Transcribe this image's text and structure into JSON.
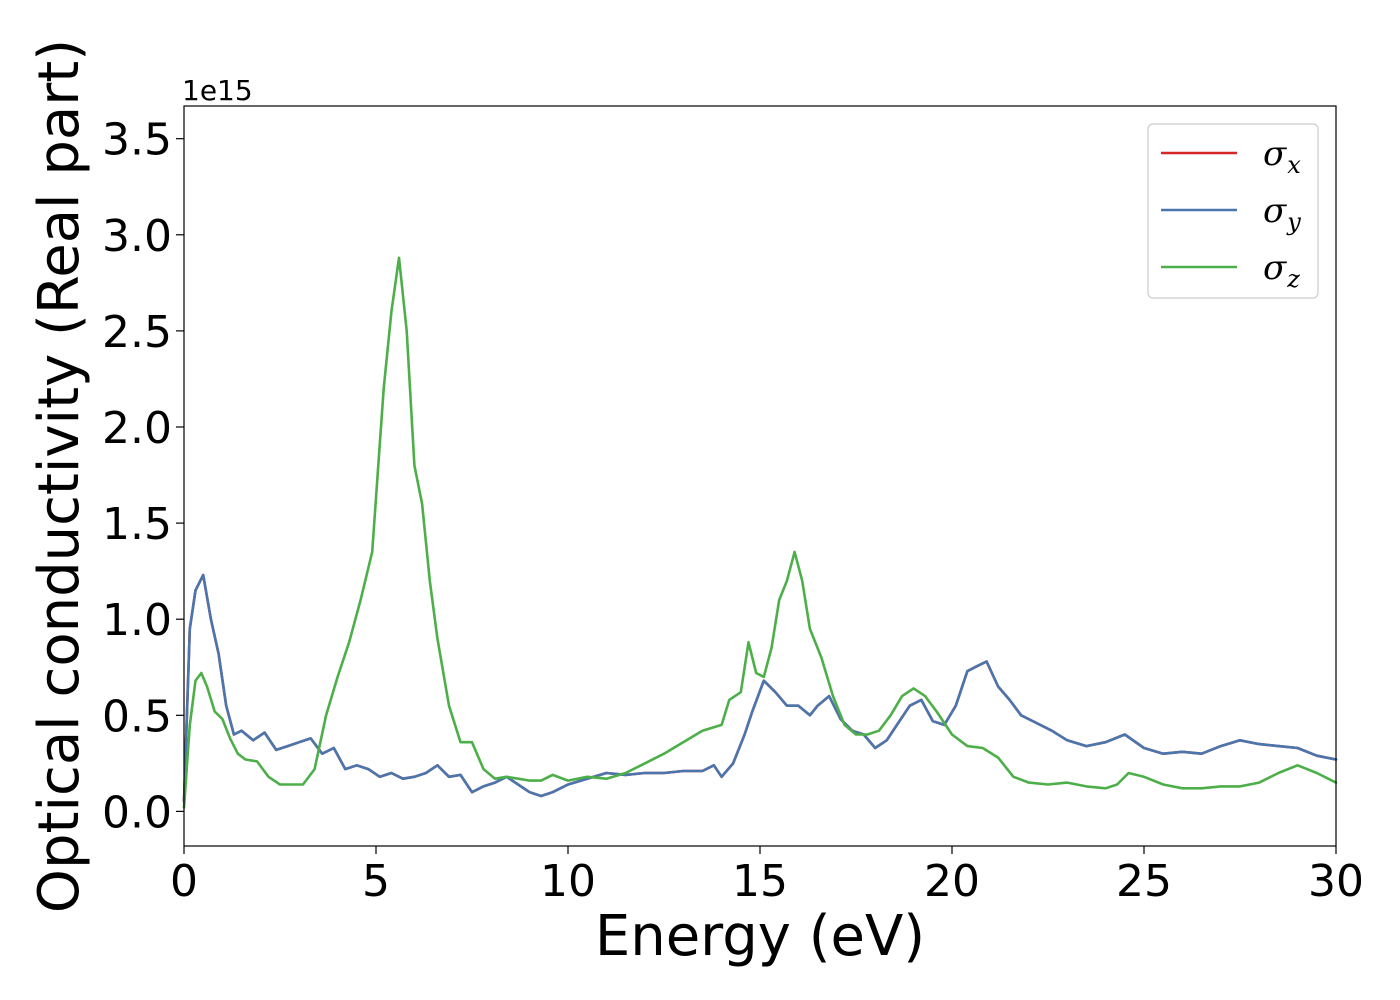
{
  "chart_data": {
    "type": "line",
    "xlabel": "Energy (eV)",
    "ylabel": "Optical conductivity (Real part)",
    "y_offset_label": "1e15",
    "xlim": [
      0,
      30
    ],
    "ylim": [
      -0.18,
      3.67
    ],
    "x_ticks": [
      0,
      5,
      10,
      15,
      20,
      25,
      30
    ],
    "x_tick_labels": [
      "0",
      "5",
      "10",
      "15",
      "20",
      "25",
      "30"
    ],
    "y_ticks": [
      0.0,
      0.5,
      1.0,
      1.5,
      2.0,
      2.5,
      3.0,
      3.5
    ],
    "y_tick_labels": [
      "0.0",
      "0.5",
      "1.0",
      "1.5",
      "2.0",
      "2.5",
      "3.0",
      "3.5"
    ],
    "grid": false,
    "legend_position": "top-right",
    "series": [
      {
        "name": "σ",
        "subscript": "x",
        "color": "#d62728",
        "x": [
          0,
          0.15,
          0.3,
          0.5,
          0.7,
          0.9,
          1.1,
          1.3,
          1.5,
          1.8,
          2.1,
          2.4,
          2.7,
          3.0,
          3.3,
          3.6,
          3.9,
          4.2,
          4.5,
          4.8,
          5.1,
          5.4,
          5.7,
          6.0,
          6.3,
          6.6,
          6.9,
          7.2,
          7.5,
          7.8,
          8.1,
          8.4,
          8.7,
          9.0,
          9.3,
          9.6,
          10.0,
          10.5,
          11.0,
          11.5,
          12.0,
          12.5,
          13.0,
          13.5,
          13.8,
          14.0,
          14.3,
          14.6,
          14.8,
          15.1,
          15.4,
          15.7,
          16.0,
          16.3,
          16.5,
          16.8,
          17.1,
          17.4,
          17.7,
          18.0,
          18.3,
          18.6,
          18.9,
          19.2,
          19.5,
          19.8,
          20.1,
          20.4,
          20.6,
          20.9,
          21.2,
          21.5,
          21.8,
          22.2,
          22.6,
          23.0,
          23.5,
          24.0,
          24.5,
          25.0,
          25.5,
          26.0,
          26.5,
          27.0,
          27.5,
          28.0,
          28.5,
          29.0,
          29.5,
          30.0
        ],
        "values": [
          0.05,
          0.95,
          1.15,
          1.23,
          1.0,
          0.82,
          0.55,
          0.4,
          0.42,
          0.37,
          0.41,
          0.32,
          0.34,
          0.36,
          0.38,
          0.3,
          0.33,
          0.22,
          0.24,
          0.22,
          0.18,
          0.2,
          0.17,
          0.18,
          0.2,
          0.24,
          0.18,
          0.19,
          0.1,
          0.13,
          0.15,
          0.18,
          0.14,
          0.1,
          0.08,
          0.1,
          0.14,
          0.17,
          0.2,
          0.19,
          0.2,
          0.2,
          0.21,
          0.21,
          0.24,
          0.18,
          0.25,
          0.4,
          0.52,
          0.68,
          0.62,
          0.55,
          0.55,
          0.5,
          0.55,
          0.6,
          0.48,
          0.42,
          0.4,
          0.33,
          0.37,
          0.46,
          0.55,
          0.58,
          0.47,
          0.45,
          0.55,
          0.73,
          0.75,
          0.78,
          0.65,
          0.58,
          0.5,
          0.46,
          0.42,
          0.37,
          0.34,
          0.36,
          0.4,
          0.33,
          0.3,
          0.31,
          0.3,
          0.34,
          0.37,
          0.35,
          0.34,
          0.33,
          0.29,
          0.27
        ]
      },
      {
        "name": "σ",
        "subscript": "y",
        "color": "#4a76ae",
        "x": [
          0,
          0.15,
          0.3,
          0.5,
          0.7,
          0.9,
          1.1,
          1.3,
          1.5,
          1.8,
          2.1,
          2.4,
          2.7,
          3.0,
          3.3,
          3.6,
          3.9,
          4.2,
          4.5,
          4.8,
          5.1,
          5.4,
          5.7,
          6.0,
          6.3,
          6.6,
          6.9,
          7.2,
          7.5,
          7.8,
          8.1,
          8.4,
          8.7,
          9.0,
          9.3,
          9.6,
          10.0,
          10.5,
          11.0,
          11.5,
          12.0,
          12.5,
          13.0,
          13.5,
          13.8,
          14.0,
          14.3,
          14.6,
          14.8,
          15.1,
          15.4,
          15.7,
          16.0,
          16.3,
          16.5,
          16.8,
          17.1,
          17.4,
          17.7,
          18.0,
          18.3,
          18.6,
          18.9,
          19.2,
          19.5,
          19.8,
          20.1,
          20.4,
          20.6,
          20.9,
          21.2,
          21.5,
          21.8,
          22.2,
          22.6,
          23.0,
          23.5,
          24.0,
          24.5,
          25.0,
          25.5,
          26.0,
          26.5,
          27.0,
          27.5,
          28.0,
          28.5,
          29.0,
          29.5,
          30.0
        ],
        "values": [
          0.05,
          0.95,
          1.15,
          1.23,
          1.0,
          0.82,
          0.55,
          0.4,
          0.42,
          0.37,
          0.41,
          0.32,
          0.34,
          0.36,
          0.38,
          0.3,
          0.33,
          0.22,
          0.24,
          0.22,
          0.18,
          0.2,
          0.17,
          0.18,
          0.2,
          0.24,
          0.18,
          0.19,
          0.1,
          0.13,
          0.15,
          0.18,
          0.14,
          0.1,
          0.08,
          0.1,
          0.14,
          0.17,
          0.2,
          0.19,
          0.2,
          0.2,
          0.21,
          0.21,
          0.24,
          0.18,
          0.25,
          0.4,
          0.52,
          0.68,
          0.62,
          0.55,
          0.55,
          0.5,
          0.55,
          0.6,
          0.48,
          0.42,
          0.4,
          0.33,
          0.37,
          0.46,
          0.55,
          0.58,
          0.47,
          0.45,
          0.55,
          0.73,
          0.75,
          0.78,
          0.65,
          0.58,
          0.5,
          0.46,
          0.42,
          0.37,
          0.34,
          0.36,
          0.4,
          0.33,
          0.3,
          0.31,
          0.3,
          0.34,
          0.37,
          0.35,
          0.34,
          0.33,
          0.29,
          0.27
        ]
      },
      {
        "name": "σ",
        "subscript": "z",
        "color": "#4daf4a",
        "x": [
          0,
          0.15,
          0.3,
          0.45,
          0.6,
          0.8,
          1.0,
          1.2,
          1.4,
          1.6,
          1.9,
          2.2,
          2.5,
          2.8,
          3.1,
          3.4,
          3.7,
          4.0,
          4.3,
          4.6,
          4.9,
          5.2,
          5.4,
          5.6,
          5.8,
          6.0,
          6.2,
          6.4,
          6.6,
          6.9,
          7.2,
          7.5,
          7.8,
          8.1,
          8.4,
          8.7,
          9.0,
          9.3,
          9.6,
          10.0,
          10.5,
          11.0,
          11.5,
          12.0,
          12.5,
          13.0,
          13.5,
          14.0,
          14.2,
          14.5,
          14.7,
          14.9,
          15.1,
          15.3,
          15.5,
          15.7,
          15.9,
          16.1,
          16.3,
          16.6,
          16.9,
          17.2,
          17.5,
          17.8,
          18.1,
          18.4,
          18.7,
          19.0,
          19.3,
          19.6,
          20.0,
          20.4,
          20.8,
          21.2,
          21.6,
          22.0,
          22.5,
          23.0,
          23.5,
          24.0,
          24.3,
          24.6,
          25.0,
          25.5,
          26.0,
          26.5,
          27.0,
          27.5,
          28.0,
          28.5,
          29.0,
          29.5,
          30.0
        ],
        "values": [
          0.02,
          0.45,
          0.68,
          0.72,
          0.65,
          0.52,
          0.48,
          0.38,
          0.3,
          0.27,
          0.26,
          0.18,
          0.14,
          0.14,
          0.14,
          0.22,
          0.5,
          0.7,
          0.88,
          1.1,
          1.35,
          2.2,
          2.6,
          2.88,
          2.5,
          1.8,
          1.6,
          1.2,
          0.9,
          0.55,
          0.36,
          0.36,
          0.22,
          0.17,
          0.18,
          0.17,
          0.16,
          0.16,
          0.19,
          0.16,
          0.18,
          0.17,
          0.2,
          0.25,
          0.3,
          0.36,
          0.42,
          0.45,
          0.58,
          0.62,
          0.88,
          0.72,
          0.7,
          0.85,
          1.1,
          1.2,
          1.35,
          1.2,
          0.95,
          0.8,
          0.6,
          0.45,
          0.4,
          0.4,
          0.42,
          0.5,
          0.6,
          0.64,
          0.6,
          0.52,
          0.4,
          0.34,
          0.33,
          0.28,
          0.18,
          0.15,
          0.14,
          0.15,
          0.13,
          0.12,
          0.14,
          0.2,
          0.18,
          0.14,
          0.12,
          0.12,
          0.13,
          0.13,
          0.15,
          0.2,
          0.24,
          0.2,
          0.15
        ]
      }
    ]
  }
}
